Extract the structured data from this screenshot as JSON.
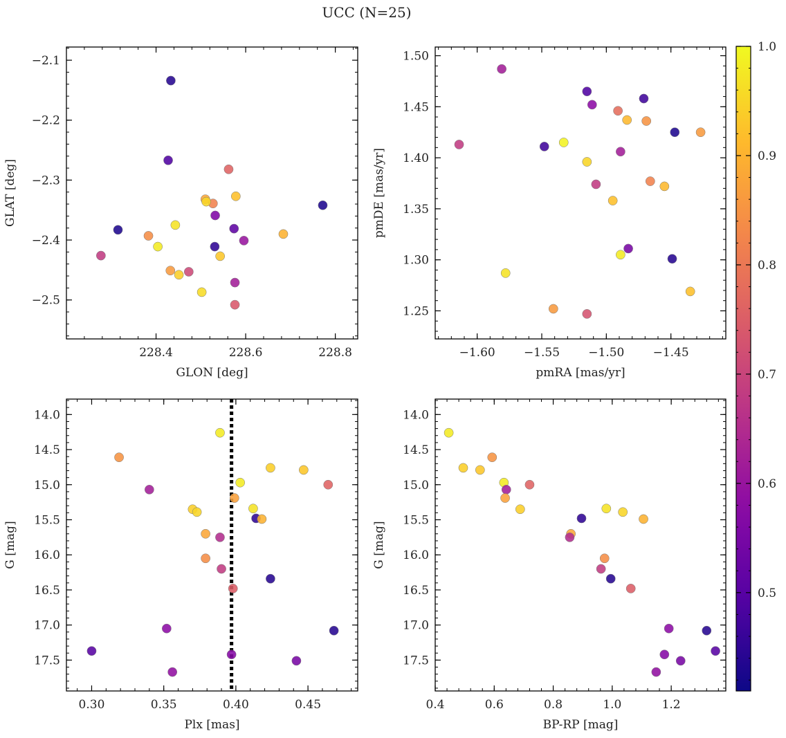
{
  "figure": {
    "title": "UCC (N=25)"
  },
  "colorbar": {
    "colormap": "plasma",
    "range": [
      0.41,
      1.0
    ],
    "tick_labels": [
      "1.0",
      "0.9",
      "0.8",
      "0.7",
      "0.6",
      "0.5"
    ],
    "tick_values": [
      1.0,
      0.9,
      0.8,
      0.7,
      0.6,
      0.5
    ]
  },
  "chart_data": [
    {
      "id": "glon-glat",
      "type": "scatter",
      "xlabel": "GLON [deg]",
      "ylabel": "GLAT [deg]",
      "xlim": [
        228.2,
        228.85
      ],
      "ylim": [
        -2.565,
        -2.078
      ],
      "y_inverted": false,
      "xticks": [
        228.4,
        228.6,
        228.8
      ],
      "xtick_labels": [
        "228.4",
        "228.6",
        "228.8"
      ],
      "yticks": [
        -2.1,
        -2.2,
        -2.3,
        -2.4,
        -2.5
      ],
      "ytick_labels": [
        "−2.1",
        "−2.2",
        "−2.3",
        "−2.4",
        "−2.5"
      ],
      "points": [
        {
          "x": 228.433,
          "y": -2.134,
          "c": 0.44
        },
        {
          "x": 228.427,
          "y": -2.267,
          "c": 0.49
        },
        {
          "x": 228.562,
          "y": -2.282,
          "c": 0.76
        },
        {
          "x": 228.51,
          "y": -2.332,
          "c": 0.88
        },
        {
          "x": 228.527,
          "y": -2.339,
          "c": 0.82
        },
        {
          "x": 228.512,
          "y": -2.336,
          "c": 0.95
        },
        {
          "x": 228.578,
          "y": -2.327,
          "c": 0.92
        },
        {
          "x": 228.772,
          "y": -2.342,
          "c": 0.43
        },
        {
          "x": 228.443,
          "y": -2.375,
          "c": 0.97
        },
        {
          "x": 228.532,
          "y": -2.359,
          "c": 0.56
        },
        {
          "x": 228.315,
          "y": -2.383,
          "c": 0.43
        },
        {
          "x": 228.574,
          "y": -2.381,
          "c": 0.51
        },
        {
          "x": 228.383,
          "y": -2.393,
          "c": 0.84
        },
        {
          "x": 228.404,
          "y": -2.411,
          "c": 0.98
        },
        {
          "x": 228.531,
          "y": -2.411,
          "c": 0.45
        },
        {
          "x": 228.596,
          "y": -2.401,
          "c": 0.6
        },
        {
          "x": 228.684,
          "y": -2.39,
          "c": 0.9
        },
        {
          "x": 228.277,
          "y": -2.426,
          "c": 0.68
        },
        {
          "x": 228.543,
          "y": -2.427,
          "c": 0.93
        },
        {
          "x": 228.432,
          "y": -2.451,
          "c": 0.86
        },
        {
          "x": 228.473,
          "y": -2.453,
          "c": 0.71
        },
        {
          "x": 228.451,
          "y": -2.458,
          "c": 0.94
        },
        {
          "x": 228.576,
          "y": -2.471,
          "c": 0.62
        },
        {
          "x": 228.502,
          "y": -2.487,
          "c": 0.96
        },
        {
          "x": 228.576,
          "y": -2.508,
          "c": 0.74
        }
      ]
    },
    {
      "id": "pmra-pmde",
      "type": "scatter",
      "xlabel": "pmRA [mas/yr]",
      "ylabel": "pmDE [mas/yr]",
      "xlim": [
        -1.6325,
        -1.4075
      ],
      "ylim": [
        1.2225,
        1.5085
      ],
      "y_inverted": false,
      "xticks": [
        -1.6,
        -1.55,
        -1.5,
        -1.45
      ],
      "xtick_labels": [
        "−1.60",
        "−1.55",
        "−1.50",
        "−1.45"
      ],
      "yticks": [
        1.25,
        1.3,
        1.35,
        1.4,
        1.45,
        1.5
      ],
      "ytick_labels": [
        "1.25",
        "1.30",
        "1.35",
        "1.40",
        "1.45",
        "1.50"
      ],
      "points": [
        {
          "x": -1.581,
          "y": 1.487,
          "c": 0.62
        },
        {
          "x": -1.515,
          "y": 1.465,
          "c": 0.49
        },
        {
          "x": -1.471,
          "y": 1.458,
          "c": 0.47
        },
        {
          "x": -1.511,
          "y": 1.452,
          "c": 0.58
        },
        {
          "x": -1.491,
          "y": 1.446,
          "c": 0.78
        },
        {
          "x": -1.484,
          "y": 1.437,
          "c": 0.91
        },
        {
          "x": -1.469,
          "y": 1.436,
          "c": 0.85
        },
        {
          "x": -1.447,
          "y": 1.425,
          "c": 0.43
        },
        {
          "x": -1.427,
          "y": 1.425,
          "c": 0.86
        },
        {
          "x": -1.533,
          "y": 1.415,
          "c": 0.99
        },
        {
          "x": -1.614,
          "y": 1.413,
          "c": 0.68
        },
        {
          "x": -1.548,
          "y": 1.411,
          "c": 0.47
        },
        {
          "x": -1.489,
          "y": 1.406,
          "c": 0.62
        },
        {
          "x": -1.515,
          "y": 1.396,
          "c": 0.95
        },
        {
          "x": -1.466,
          "y": 1.377,
          "c": 0.82
        },
        {
          "x": -1.508,
          "y": 1.374,
          "c": 0.68
        },
        {
          "x": -1.455,
          "y": 1.372,
          "c": 0.91
        },
        {
          "x": -1.495,
          "y": 1.358,
          "c": 0.92
        },
        {
          "x": -1.483,
          "y": 1.311,
          "c": 0.55
        },
        {
          "x": -1.489,
          "y": 1.305,
          "c": 0.98
        },
        {
          "x": -1.449,
          "y": 1.301,
          "c": 0.44
        },
        {
          "x": -1.578,
          "y": 1.287,
          "c": 0.97
        },
        {
          "x": -1.435,
          "y": 1.269,
          "c": 0.92
        },
        {
          "x": -1.541,
          "y": 1.252,
          "c": 0.86
        },
        {
          "x": -1.515,
          "y": 1.247,
          "c": 0.73
        }
      ]
    },
    {
      "id": "plx-g",
      "type": "scatter",
      "xlabel": "Plx [mas]",
      "ylabel": "G [mag]",
      "xlim": [
        0.2825,
        0.4845
      ],
      "ylim": [
        17.94,
        13.78
      ],
      "y_inverted": true,
      "xticks": [
        0.3,
        0.35,
        0.4,
        0.45
      ],
      "xtick_labels": [
        "0.30",
        "0.35",
        "0.40",
        "0.45"
      ],
      "yticks": [
        14.0,
        14.5,
        15.0,
        15.5,
        16.0,
        16.5,
        17.0,
        17.5
      ],
      "ytick_labels": [
        "14.0",
        "14.5",
        "15.0",
        "15.5",
        "16.0",
        "16.5",
        "17.0",
        "17.5"
      ],
      "vline": 0.397,
      "points": [
        {
          "x": 0.389,
          "y": 14.26,
          "c": 0.98
        },
        {
          "x": 0.319,
          "y": 14.61,
          "c": 0.85
        },
        {
          "x": 0.424,
          "y": 14.76,
          "c": 0.94
        },
        {
          "x": 0.447,
          "y": 14.79,
          "c": 0.93
        },
        {
          "x": 0.403,
          "y": 14.97,
          "c": 0.98
        },
        {
          "x": 0.464,
          "y": 15.0,
          "c": 0.76
        },
        {
          "x": 0.34,
          "y": 15.07,
          "c": 0.62
        },
        {
          "x": 0.399,
          "y": 15.19,
          "c": 0.87
        },
        {
          "x": 0.37,
          "y": 15.35,
          "c": 0.94
        },
        {
          "x": 0.412,
          "y": 15.34,
          "c": 0.97
        },
        {
          "x": 0.373,
          "y": 15.39,
          "c": 0.95
        },
        {
          "x": 0.414,
          "y": 15.48,
          "c": 0.45
        },
        {
          "x": 0.418,
          "y": 15.49,
          "c": 0.9
        },
        {
          "x": 0.379,
          "y": 15.7,
          "c": 0.88
        },
        {
          "x": 0.389,
          "y": 15.75,
          "c": 0.65
        },
        {
          "x": 0.379,
          "y": 16.05,
          "c": 0.84
        },
        {
          "x": 0.39,
          "y": 16.2,
          "c": 0.68
        },
        {
          "x": 0.424,
          "y": 16.34,
          "c": 0.44
        },
        {
          "x": 0.398,
          "y": 16.48,
          "c": 0.75
        },
        {
          "x": 0.352,
          "y": 17.05,
          "c": 0.58
        },
        {
          "x": 0.468,
          "y": 17.08,
          "c": 0.44
        },
        {
          "x": 0.3,
          "y": 17.37,
          "c": 0.5
        },
        {
          "x": 0.397,
          "y": 17.42,
          "c": 0.57
        },
        {
          "x": 0.442,
          "y": 17.51,
          "c": 0.55
        },
        {
          "x": 0.356,
          "y": 17.67,
          "c": 0.59
        }
      ]
    },
    {
      "id": "bprp-g",
      "type": "scatter",
      "xlabel": "BP-RP [mag]",
      "ylabel": "G [mag]",
      "xlim": [
        0.4,
        1.385
      ],
      "ylim": [
        17.94,
        13.78
      ],
      "y_inverted": true,
      "xticks": [
        0.4,
        0.6,
        0.8,
        1.0,
        1.2
      ],
      "xtick_labels": [
        "0.4",
        "0.6",
        "0.8",
        "1.0",
        "1.2"
      ],
      "yticks": [
        14.0,
        14.5,
        15.0,
        15.5,
        16.0,
        16.5,
        17.0,
        17.5
      ],
      "ytick_labels": [
        "14.0",
        "14.5",
        "15.0",
        "15.5",
        "16.0",
        "16.5",
        "17.0",
        "17.5"
      ],
      "points": [
        {
          "x": 0.446,
          "y": 14.26,
          "c": 0.98
        },
        {
          "x": 0.593,
          "y": 14.61,
          "c": 0.85
        },
        {
          "x": 0.495,
          "y": 14.76,
          "c": 0.94
        },
        {
          "x": 0.552,
          "y": 14.79,
          "c": 0.93
        },
        {
          "x": 0.633,
          "y": 14.97,
          "c": 0.98
        },
        {
          "x": 0.72,
          "y": 15.0,
          "c": 0.76
        },
        {
          "x": 0.641,
          "y": 15.07,
          "c": 0.62
        },
        {
          "x": 0.637,
          "y": 15.19,
          "c": 0.87
        },
        {
          "x": 0.688,
          "y": 15.35,
          "c": 0.94
        },
        {
          "x": 0.98,
          "y": 15.34,
          "c": 0.97
        },
        {
          "x": 1.036,
          "y": 15.39,
          "c": 0.95
        },
        {
          "x": 0.896,
          "y": 15.48,
          "c": 0.45
        },
        {
          "x": 1.106,
          "y": 15.49,
          "c": 0.9
        },
        {
          "x": 0.86,
          "y": 15.7,
          "c": 0.88
        },
        {
          "x": 0.856,
          "y": 15.75,
          "c": 0.65
        },
        {
          "x": 0.974,
          "y": 16.05,
          "c": 0.84
        },
        {
          "x": 0.962,
          "y": 16.2,
          "c": 0.68
        },
        {
          "x": 0.995,
          "y": 16.34,
          "c": 0.44
        },
        {
          "x": 1.063,
          "y": 16.48,
          "c": 0.75
        },
        {
          "x": 1.192,
          "y": 17.05,
          "c": 0.58
        },
        {
          "x": 1.32,
          "y": 17.08,
          "c": 0.44
        },
        {
          "x": 1.35,
          "y": 17.37,
          "c": 0.5
        },
        {
          "x": 1.177,
          "y": 17.42,
          "c": 0.57
        },
        {
          "x": 1.232,
          "y": 17.51,
          "c": 0.55
        },
        {
          "x": 1.149,
          "y": 17.67,
          "c": 0.59
        }
      ]
    }
  ]
}
